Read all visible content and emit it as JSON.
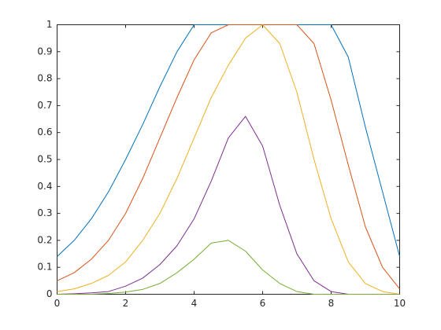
{
  "chart_data": {
    "type": "line",
    "x": [
      0,
      0.5,
      1,
      1.5,
      2,
      2.5,
      3,
      3.5,
      4,
      4.5,
      5,
      5.5,
      6,
      6.5,
      7,
      7.5,
      8,
      8.5,
      9,
      9.5,
      10
    ],
    "series": [
      {
        "color": "#0072bd",
        "values": [
          0.14,
          0.2,
          0.28,
          0.38,
          0.5,
          0.63,
          0.77,
          0.9,
          1,
          1,
          1,
          1,
          1,
          1,
          1,
          1,
          1,
          0.88,
          0.62,
          0.38,
          0.14
        ]
      },
      {
        "color": "#d95319",
        "values": [
          0.05,
          0.08,
          0.13,
          0.2,
          0.3,
          0.43,
          0.58,
          0.73,
          0.87,
          0.97,
          1,
          1,
          1,
          1,
          1,
          0.93,
          0.72,
          0.48,
          0.25,
          0.1,
          0.02
        ]
      },
      {
        "color": "#edb120",
        "values": [
          0.01,
          0.02,
          0.04,
          0.07,
          0.12,
          0.2,
          0.3,
          0.43,
          0.58,
          0.73,
          0.85,
          0.95,
          1,
          0.93,
          0.75,
          0.5,
          0.28,
          0.12,
          0.04,
          0.01,
          0
        ]
      },
      {
        "color": "#7e2f8e",
        "values": [
          0,
          0.002,
          0.005,
          0.01,
          0.03,
          0.06,
          0.11,
          0.18,
          0.28,
          0.42,
          0.58,
          0.66,
          0.55,
          0.33,
          0.15,
          0.05,
          0.01,
          0,
          0,
          0,
          0
        ]
      },
      {
        "color": "#77ac30",
        "values": [
          0,
          0,
          0,
          0.003,
          0.008,
          0.018,
          0.04,
          0.08,
          0.13,
          0.19,
          0.2,
          0.16,
          0.09,
          0.04,
          0.01,
          0,
          0,
          0,
          0,
          0,
          0
        ]
      }
    ],
    "xlim": [
      0,
      10
    ],
    "xticks": [
      0,
      2,
      4,
      6,
      8,
      10
    ],
    "ylim": [
      0,
      1
    ],
    "yticks": [
      0,
      0.1,
      0.2,
      0.3,
      0.4,
      0.5,
      0.6,
      0.7,
      0.8,
      0.9,
      1
    ]
  }
}
